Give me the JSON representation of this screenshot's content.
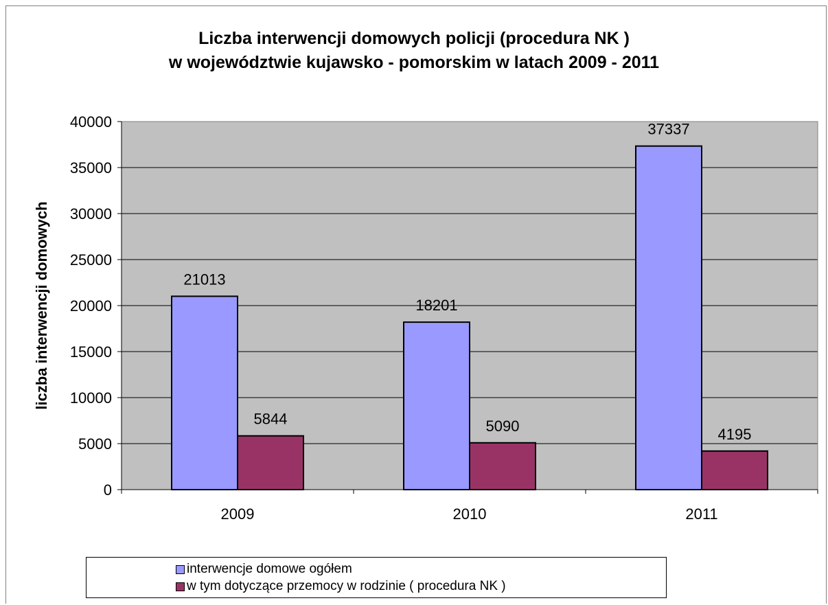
{
  "chart_data": {
    "type": "bar",
    "title": [
      "Liczba interwencji domowych policji (procedura NK )",
      "w województwie kujawsko - pomorskim w latach 2009 - 2011"
    ],
    "xlabel": "",
    "ylabel": "liczba interwencji domowych",
    "categories": [
      "2009",
      "2010",
      "2011"
    ],
    "ylim": [
      0,
      40000
    ],
    "yticks": [
      0,
      5000,
      10000,
      15000,
      20000,
      25000,
      30000,
      35000,
      40000
    ],
    "grid": true,
    "legend_position": "bottom",
    "series": [
      {
        "name": "interwencje domowe ogółem",
        "color": "#9999ff",
        "values": [
          21013,
          18201,
          37337
        ]
      },
      {
        "name": "w tym dotyczące przemocy w rodzinie ( procedura NK )",
        "color": "#993366",
        "values": [
          5844,
          5090,
          4195
        ]
      }
    ]
  },
  "colors": {
    "plot_background": "#c0c0c0",
    "gridline": "#000000"
  }
}
